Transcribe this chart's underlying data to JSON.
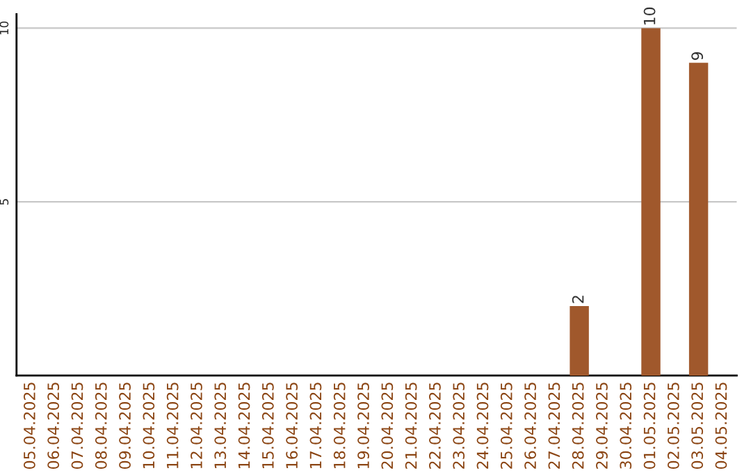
{
  "chart_data": {
    "type": "bar",
    "categories": [
      "05.04.2025",
      "06.04.2025",
      "07.04.2025",
      "08.04.2025",
      "09.04.2025",
      "10.04.2025",
      "11.04.2025",
      "12.04.2025",
      "13.04.2025",
      "14.04.2025",
      "15.04.2025",
      "16.04.2025",
      "17.04.2025",
      "18.04.2025",
      "19.04.2025",
      "20.04.2025",
      "21.04.2025",
      "22.04.2025",
      "23.04.2025",
      "24.04.2025",
      "25.04.2025",
      "26.04.2025",
      "27.04.2025",
      "28.04.2025",
      "29.04.2025",
      "30.04.2025",
      "01.05.2025",
      "02.05.2025",
      "03.05.2025",
      "04.05.2025"
    ],
    "values": [
      0,
      0,
      0,
      0,
      0,
      0,
      0,
      0,
      0,
      0,
      0,
      0,
      0,
      0,
      0,
      0,
      0,
      0,
      0,
      0,
      0,
      0,
      0,
      2,
      0,
      0,
      10,
      0,
      9,
      0
    ],
    "value_labels": [
      null,
      null,
      null,
      null,
      null,
      null,
      null,
      null,
      null,
      null,
      null,
      null,
      null,
      null,
      null,
      null,
      null,
      null,
      null,
      null,
      null,
      null,
      null,
      "2",
      null,
      null,
      "10",
      null,
      "9",
      null
    ],
    "color": "#a0582c",
    "ylim": [
      0,
      10.4
    ],
    "yticks": [
      5,
      10
    ],
    "grid": "y"
  }
}
